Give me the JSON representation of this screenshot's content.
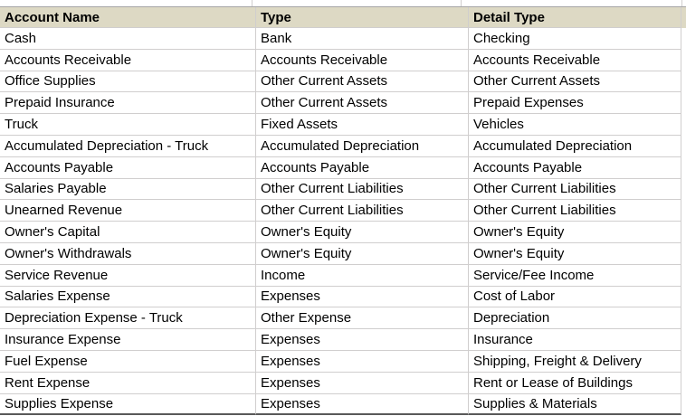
{
  "table": {
    "columns": [
      "Account Name",
      "Type",
      "Detail Type"
    ],
    "rows": [
      {
        "account": "Cash",
        "type": "Bank",
        "detail": "Checking"
      },
      {
        "account": "Accounts Receivable",
        "type": "Accounts Receivable",
        "detail": "Accounts Receivable"
      },
      {
        "account": "Office Supplies",
        "type": "Other Current Assets",
        "detail": "Other Current Assets"
      },
      {
        "account": "Prepaid Insurance",
        "type": "Other Current Assets",
        "detail": "Prepaid Expenses"
      },
      {
        "account": "Truck",
        "type": "Fixed Assets",
        "detail": "Vehicles"
      },
      {
        "account": "Accumulated Depreciation - Truck",
        "type": "Accumulated Depreciation",
        "detail": "Accumulated Depreciation"
      },
      {
        "account": "Accounts Payable",
        "type": "Accounts Payable",
        "detail": "Accounts Payable"
      },
      {
        "account": "Salaries Payable",
        "type": "Other Current Liabilities",
        "detail": "Other Current Liabilities"
      },
      {
        "account": "Unearned Revenue",
        "type": "Other Current Liabilities",
        "detail": "Other Current Liabilities"
      },
      {
        "account": "Owner's Capital",
        "type": "Owner's Equity",
        "detail": "Owner's Equity"
      },
      {
        "account": "Owner's Withdrawals",
        "type": "Owner's Equity",
        "detail": "Owner's Equity"
      },
      {
        "account": "Service Revenue",
        "type": "Income",
        "detail": "Service/Fee Income"
      },
      {
        "account": "Salaries Expense",
        "type": "Expenses",
        "detail": "Cost of Labor"
      },
      {
        "account": "Depreciation Expense - Truck",
        "type": "Other Expense",
        "detail": "Depreciation"
      },
      {
        "account": "Insurance Expense",
        "type": "Expenses",
        "detail": "Insurance"
      },
      {
        "account": "Fuel Expense",
        "type": "Expenses",
        "detail": "Shipping, Freight & Delivery"
      },
      {
        "account": "Rent Expense",
        "type": "Expenses",
        "detail": "Rent or Lease of Buildings"
      },
      {
        "account": "Supplies Expense",
        "type": "Expenses",
        "detail": "Supplies & Materials"
      }
    ]
  },
  "colors": {
    "header_bg": "#ddd9c4",
    "grid_line": "#d0cece",
    "top_line": "#a6a6a6",
    "bottom_border": "#595959",
    "text": "#000000"
  }
}
